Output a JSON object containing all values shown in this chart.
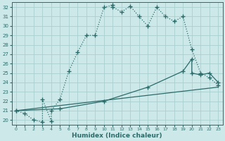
{
  "xlabel": "Humidex (Indice chaleur)",
  "bg_color": "#cce8e8",
  "line_color": "#2d6b6b",
  "xlim": [
    -0.5,
    23.5
  ],
  "ylim": [
    19.5,
    32.5
  ],
  "xticks": [
    0,
    1,
    2,
    3,
    4,
    5,
    6,
    7,
    8,
    9,
    10,
    11,
    12,
    13,
    14,
    15,
    16,
    17,
    18,
    19,
    20,
    21,
    22,
    23
  ],
  "yticks": [
    20,
    21,
    22,
    23,
    24,
    25,
    26,
    27,
    28,
    29,
    30,
    31,
    32
  ],
  "grid_color": "#aacfcf",
  "curve1_x": [
    0,
    1,
    2,
    3,
    3,
    4,
    4,
    5,
    6,
    7,
    8,
    9,
    10,
    11,
    11,
    12,
    13,
    14,
    15,
    16,
    17,
    18,
    19,
    20,
    21,
    22,
    23
  ],
  "curve1_y": [
    21.0,
    20.7,
    20.0,
    19.8,
    22.2,
    19.9,
    21.0,
    22.2,
    25.2,
    27.2,
    29.0,
    29.0,
    32.0,
    32.2,
    32.0,
    31.5,
    32.1,
    31.0,
    30.0,
    32.0,
    31.0,
    30.5,
    31.0,
    27.5,
    25.0,
    24.5,
    23.7
  ],
  "curve2_x": [
    0,
    5,
    10,
    15,
    19,
    20,
    20,
    21,
    22,
    23
  ],
  "curve2_y": [
    21.0,
    21.2,
    22.0,
    23.5,
    25.2,
    26.5,
    25.0,
    24.8,
    25.0,
    24.0
  ],
  "curve3_x": [
    0,
    23
  ],
  "curve3_y": [
    21.0,
    23.5
  ],
  "marker": "+",
  "markersize": 5,
  "lw": 0.9
}
